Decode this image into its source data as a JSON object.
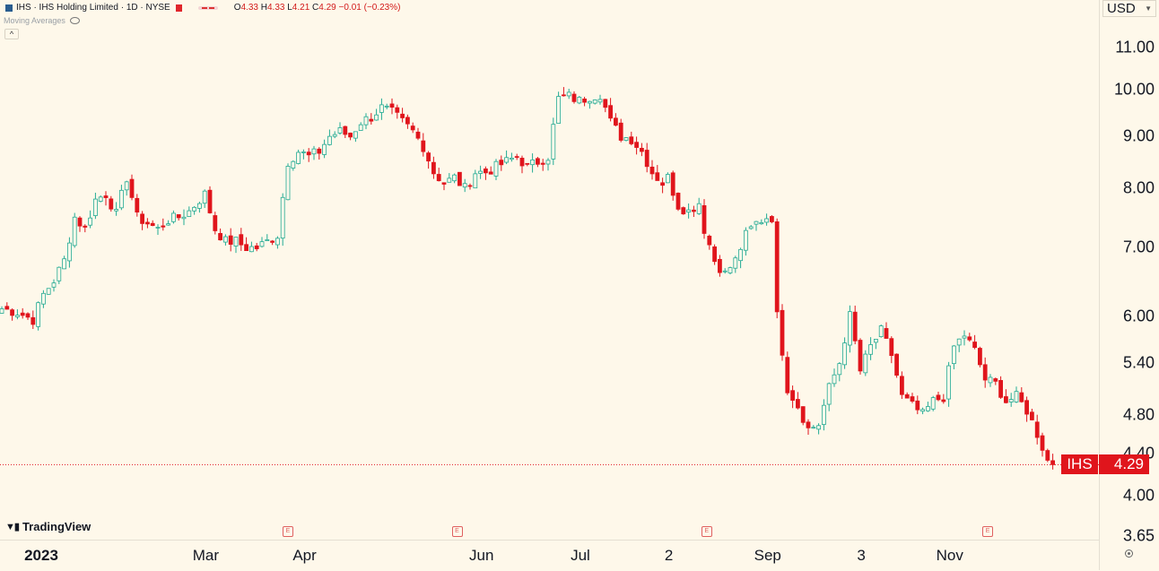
{
  "legend": {
    "ticker": "IHS",
    "name": "IHS Holding Limited",
    "interval": "1D",
    "exchange": "NYSE",
    "title_text": "IHS · IHS Holding Limited · 1D · NYSE",
    "open_label": "O",
    "open": "4.33",
    "high_label": "H",
    "high": "4.33",
    "low_label": "L",
    "low": "4.21",
    "close_label": "C",
    "close": "4.29",
    "change": "−0.01 (−0.23%)"
  },
  "indicators": {
    "moving_averages": "Moving Averages"
  },
  "currency": "USD",
  "branding": "TradingView",
  "last_price": {
    "symbol": "IHS",
    "value": "4.29"
  },
  "colors": {
    "up": "#22ab94",
    "down": "#e0151c",
    "background": "#fef8ea"
  },
  "chart_data": {
    "type": "candlestick",
    "title": "IHS · IHS Holding Limited · 1D · NYSE",
    "y_scale": "log",
    "ylim": [
      3.55,
      11.6
    ],
    "price_ticks": [
      "11.00",
      "10.00",
      "9.00",
      "8.00",
      "7.00",
      "6.00",
      "5.40",
      "4.80",
      "4.40",
      "4.00",
      "3.65"
    ],
    "time_ticks": [
      {
        "label": "2023",
        "x": 0.2,
        "bold": true
      },
      {
        "label": "Mar",
        "x": 39.2
      },
      {
        "label": "Apr",
        "x": 58.2
      },
      {
        "label": "Jun",
        "x": 92.2
      },
      {
        "label": "Jul",
        "x": 111.2
      },
      {
        "label": "2",
        "x": 128.2
      },
      {
        "label": "Sep",
        "x": 147.2
      },
      {
        "label": "3",
        "x": 165.2
      },
      {
        "label": "Nov",
        "x": 182.2
      }
    ],
    "earnings_markers_x": [
      55,
      87.5,
      135.5,
      189.5
    ],
    "earnings_label": "E",
    "path": [
      [
        0,
        6.1
      ],
      [
        3,
        6.05
      ],
      [
        6,
        5.95
      ],
      [
        8,
        6.3
      ],
      [
        10,
        6.5
      ],
      [
        12,
        6.8
      ],
      [
        14,
        7.5
      ],
      [
        16,
        7.3
      ],
      [
        18,
        7.8
      ],
      [
        20,
        7.9
      ],
      [
        22,
        7.55
      ],
      [
        24,
        8.2
      ],
      [
        26,
        7.5
      ],
      [
        28,
        7.4
      ],
      [
        30,
        7.3
      ],
      [
        32,
        7.45
      ],
      [
        34,
        7.5
      ],
      [
        36,
        7.6
      ],
      [
        39,
        7.9
      ],
      [
        41,
        7.3
      ],
      [
        43,
        7.1
      ],
      [
        45,
        7.1
      ],
      [
        47,
        7.0
      ],
      [
        49,
        7.0
      ],
      [
        51,
        7.1
      ],
      [
        53,
        7.2
      ],
      [
        55,
        8.5
      ],
      [
        57,
        8.7
      ],
      [
        59,
        8.6
      ],
      [
        61,
        8.7
      ],
      [
        63,
        9.0
      ],
      [
        65,
        9.1
      ],
      [
        67,
        9.0
      ],
      [
        69,
        9.3
      ],
      [
        71,
        9.4
      ],
      [
        73,
        9.6
      ],
      [
        75,
        9.5
      ],
      [
        77,
        9.3
      ],
      [
        79,
        9.1
      ],
      [
        81,
        8.8
      ],
      [
        83,
        8.3
      ],
      [
        85,
        8.1
      ],
      [
        87,
        8.2
      ],
      [
        89,
        8.0
      ],
      [
        91,
        8.3
      ],
      [
        93,
        8.3
      ],
      [
        95,
        8.4
      ],
      [
        97,
        8.5
      ],
      [
        99,
        8.6
      ],
      [
        101,
        8.4
      ],
      [
        103,
        8.5
      ],
      [
        105,
        8.6
      ],
      [
        107,
        9.8
      ],
      [
        109,
        9.85
      ],
      [
        111,
        9.75
      ],
      [
        113,
        9.85
      ],
      [
        115,
        9.9
      ],
      [
        117,
        9.3
      ],
      [
        119,
        9.0
      ],
      [
        121,
        8.95
      ],
      [
        123,
        8.7
      ],
      [
        125,
        8.3
      ],
      [
        127,
        8.1
      ],
      [
        128,
        8.2
      ],
      [
        130,
        7.7
      ],
      [
        132,
        7.6
      ],
      [
        134,
        7.75
      ],
      [
        135,
        7.3
      ],
      [
        137,
        6.8
      ],
      [
        139,
        6.6
      ],
      [
        141,
        6.8
      ],
      [
        143,
        7.2
      ],
      [
        145,
        7.4
      ],
      [
        147,
        7.5
      ],
      [
        148,
        7.5
      ],
      [
        149,
        6.0
      ],
      [
        151,
        5.1
      ],
      [
        153,
        4.9
      ],
      [
        155,
        4.65
      ],
      [
        157,
        4.7
      ],
      [
        159,
        5.1
      ],
      [
        161,
        5.4
      ],
      [
        163,
        6.0
      ],
      [
        165,
        5.3
      ],
      [
        167,
        5.6
      ],
      [
        169,
        5.8
      ],
      [
        171,
        5.5
      ],
      [
        173,
        5.0
      ],
      [
        175,
        4.9
      ],
      [
        177,
        4.8
      ],
      [
        179,
        4.95
      ],
      [
        181,
        5.0
      ],
      [
        183,
        5.6
      ],
      [
        185,
        5.75
      ],
      [
        187,
        5.55
      ],
      [
        189,
        5.2
      ],
      [
        191,
        5.15
      ],
      [
        193,
        4.95
      ],
      [
        195,
        5.0
      ],
      [
        197,
        4.85
      ],
      [
        199,
        4.6
      ],
      [
        201,
        4.33
      ],
      [
        202,
        4.29
      ]
    ],
    "last": 4.29
  }
}
